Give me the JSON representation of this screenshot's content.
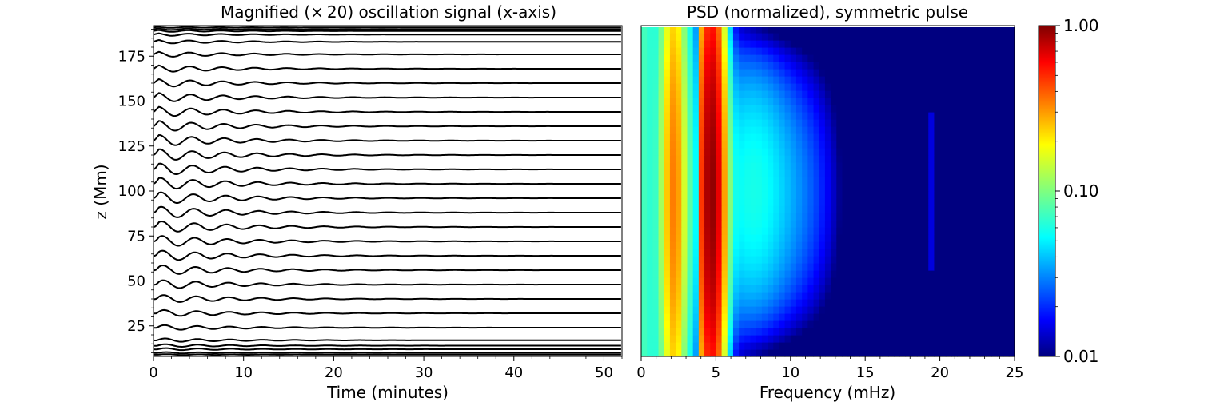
{
  "chart_data": [
    {
      "type": "line",
      "title": "Magnified (× 20) oscillation signal (x-axis)",
      "xlabel": "Time (minutes)",
      "ylabel": "z (Mm)",
      "xlim": [
        0,
        52
      ],
      "ylim": [
        8,
        192
      ],
      "xticks": [
        0,
        10,
        20,
        30,
        40,
        50
      ],
      "yticks": [
        25,
        50,
        75,
        100,
        125,
        150,
        175
      ],
      "series_offsets_z": [
        9,
        10,
        12,
        14,
        17,
        24,
        32,
        40,
        48,
        56,
        64,
        72,
        80,
        88,
        96,
        104,
        112,
        120,
        128,
        136,
        144,
        152,
        160,
        168,
        176,
        183,
        187,
        189,
        190,
        191
      ],
      "oscillation_period_min": 3.6,
      "decay_time_min": 9
    },
    {
      "type": "heatmap",
      "title": "PSD (normalized), symmetric pulse",
      "xlabel": "Frequency (mHz)",
      "xlim": [
        0,
        25
      ],
      "xticks": [
        0,
        5,
        10,
        15,
        20,
        25
      ],
      "peak_frequency_mhz": 4.7,
      "secondary_peak_mhz": 2.2,
      "colorbar": {
        "scale": "log",
        "min": 0.01,
        "max": 1.0,
        "tick_labels": [
          "1.00",
          "0.10",
          "0.01"
        ],
        "colormap": "jet"
      }
    }
  ]
}
